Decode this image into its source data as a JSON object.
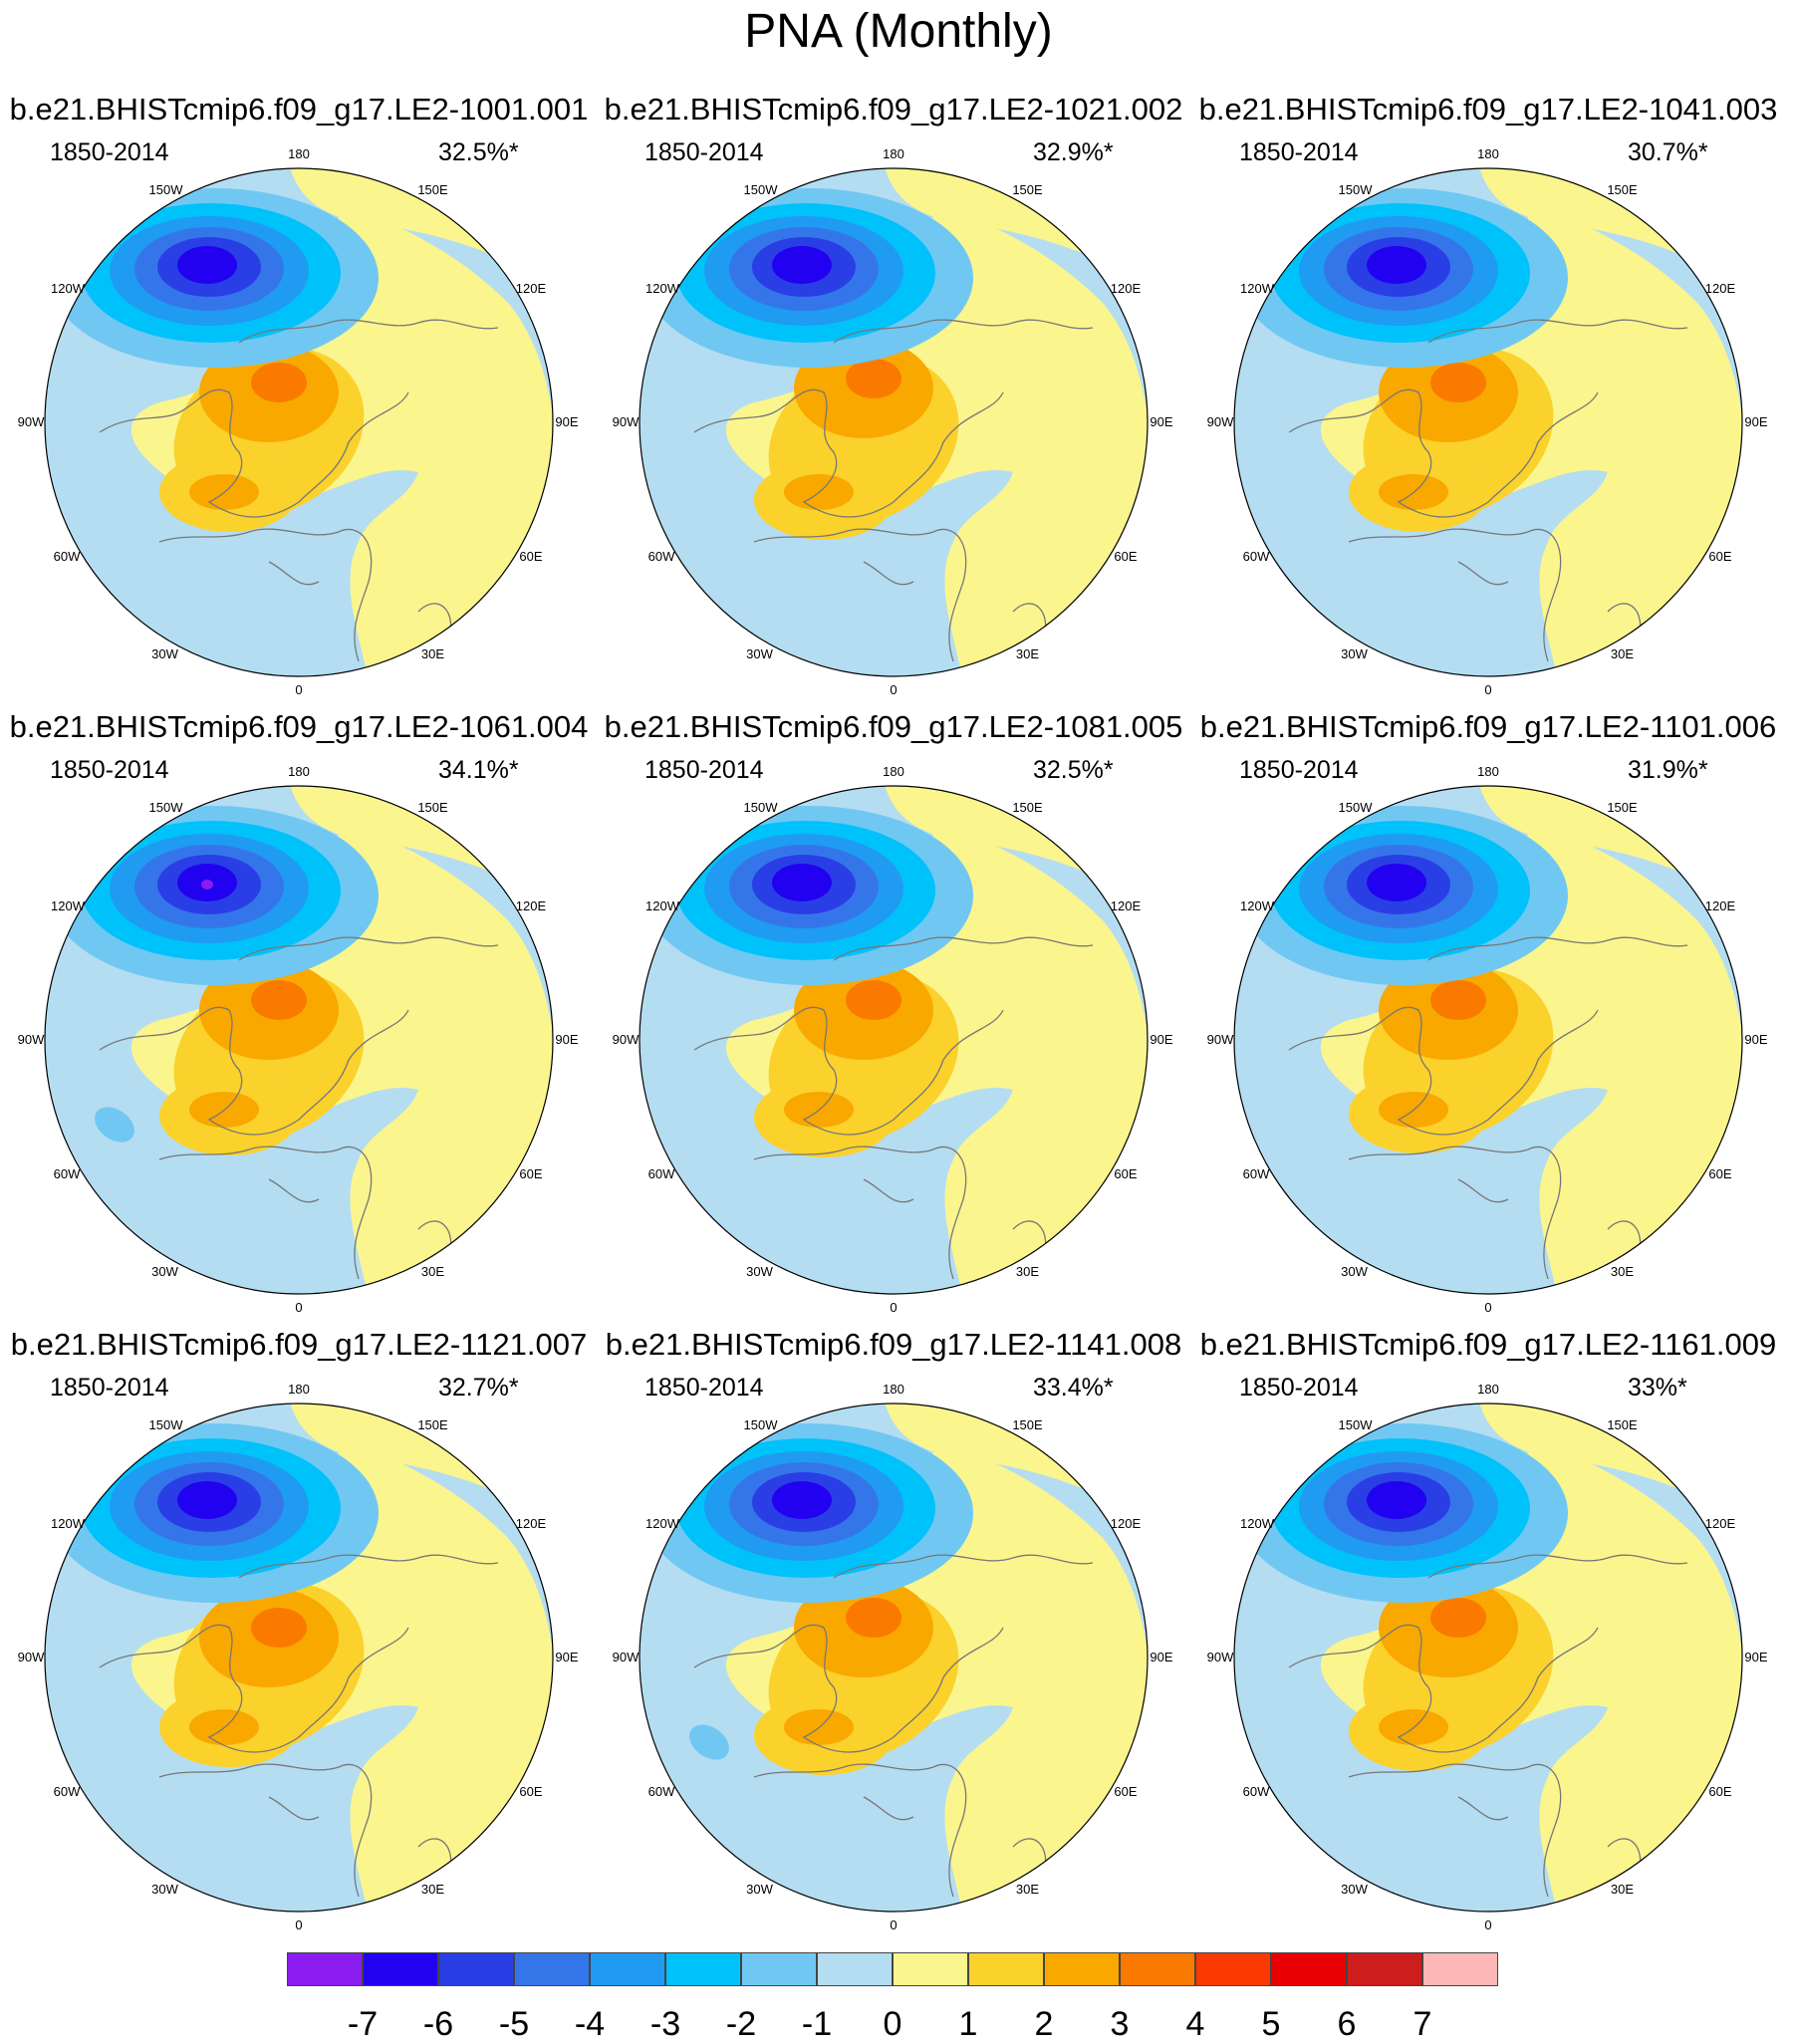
{
  "title": "PNA (Monthly)",
  "panels": [
    {
      "title": "b.e21.BHISTcmip6.f09_g17.LE2-1001.001",
      "period": "1850-2014",
      "percent": "32.5%*"
    },
    {
      "title": "b.e21.BHISTcmip6.f09_g17.LE2-1021.002",
      "period": "1850-2014",
      "percent": "32.9%*"
    },
    {
      "title": "b.e21.BHISTcmip6.f09_g17.LE2-1041.003",
      "period": "1850-2014",
      "percent": "30.7%*"
    },
    {
      "title": "b.e21.BHISTcmip6.f09_g17.LE2-1061.004",
      "period": "1850-2014",
      "percent": "34.1%*"
    },
    {
      "title": "b.e21.BHISTcmip6.f09_g17.LE2-1081.005",
      "period": "1850-2014",
      "percent": "32.5%*"
    },
    {
      "title": "b.e21.BHISTcmip6.f09_g17.LE2-1101.006",
      "period": "1850-2014",
      "percent": "31.9%*"
    },
    {
      "title": "b.e21.BHISTcmip6.f09_g17.LE2-1121.007",
      "period": "1850-2014",
      "percent": "32.7%*"
    },
    {
      "title": "b.e21.BHISTcmip6.f09_g17.LE2-1141.008",
      "period": "1850-2014",
      "percent": "33.4%*"
    },
    {
      "title": "b.e21.BHISTcmip6.f09_g17.LE2-1161.009",
      "period": "1850-2014",
      "percent": "33%*"
    }
  ],
  "longitude_labels": [
    {
      "deg": 180,
      "text": "180"
    },
    {
      "deg": 150,
      "text": "150E"
    },
    {
      "deg": 120,
      "text": "120E"
    },
    {
      "deg": 90,
      "text": "90E"
    },
    {
      "deg": 60,
      "text": "60E"
    },
    {
      "deg": 30,
      "text": "30E"
    },
    {
      "deg": 0,
      "text": "0"
    },
    {
      "deg": -30,
      "text": "30W"
    },
    {
      "deg": -60,
      "text": "60W"
    },
    {
      "deg": -90,
      "text": "90W"
    },
    {
      "deg": -120,
      "text": "120W"
    },
    {
      "deg": -150,
      "text": "150W"
    }
  ],
  "colorbar": {
    "colors": [
      "#8b1cf0",
      "#2200f0",
      "#2a3ee6",
      "#3476ea",
      "#1f9bf2",
      "#00c2fa",
      "#70c8f2",
      "#b4ddf2",
      "#fbf58e",
      "#fbd12c",
      "#f9a800",
      "#fa7a00",
      "#fa3a00",
      "#e80000",
      "#cd1d1d",
      "#fdb7b7"
    ],
    "labels": [
      "-7",
      "-6",
      "-5",
      "-4",
      "-3",
      "-2",
      "-1",
      "0",
      "1",
      "2",
      "3",
      "4",
      "5",
      "6",
      "7"
    ]
  },
  "pattern_colors": {
    "background_negative": "#b4ddf2",
    "positive_1": "#fbf58e",
    "positive_2": "#fbd12c",
    "positive_3": "#f9a800",
    "positive_4": "#fa7a00",
    "negative_2": "#70c8f2",
    "negative_3": "#00c2fa",
    "negative_4": "#1f9bf2",
    "negative_5": "#3476ea",
    "negative_6": "#2a3ee6",
    "negative_7": "#2200f0",
    "negative_8": "#8b1cf0",
    "coastline": "#777777"
  }
}
